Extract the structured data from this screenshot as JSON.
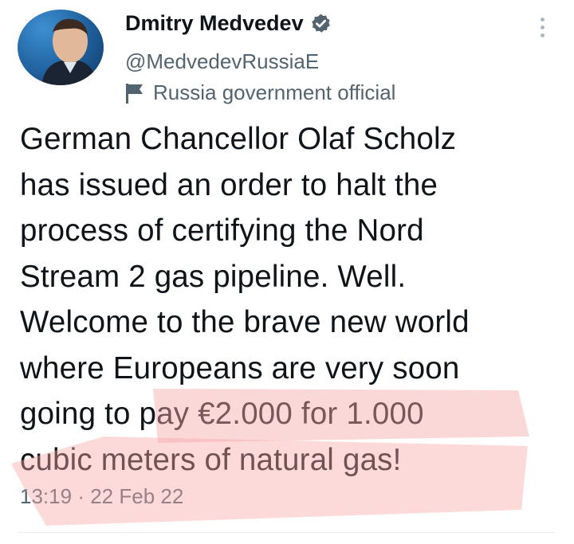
{
  "author": {
    "display_name": "Dmitry Medvedev",
    "handle": "@MedvedevRussiaE",
    "label": "Russia government official",
    "verified": true
  },
  "tweet": {
    "text": "German Chancellor Olaf Scholz\nhas issued an order to halt the\nprocess of certifying the Nord\nStream 2 gas pipeline. Well.\nWelcome to the brave new world\nwhere Europeans are very soon\ngoing to pay €2.000 for 1.000\ncubic meters of natural gas!",
    "time": "13:19",
    "separator": "·",
    "date": "22 Feb 22"
  },
  "icons": {
    "verified": "verified-badge-icon",
    "label": "flag-icon",
    "more": "more-options-icon"
  },
  "colors": {
    "verified_badge": "#536471",
    "highlight": "#f7b3b3",
    "secondary_text": "#536471"
  }
}
